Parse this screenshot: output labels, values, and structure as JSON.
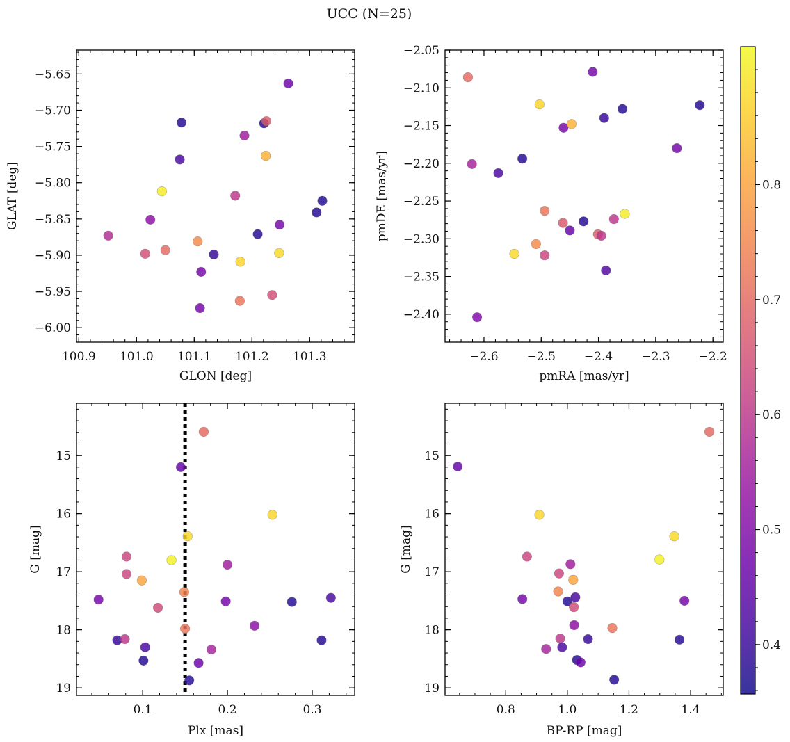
{
  "figure": {
    "title": "UCC (N=25)"
  },
  "colorbar": {
    "colormap": "plasma",
    "range": [
      0.357,
      0.92
    ],
    "ticks": [
      0.4,
      0.5,
      0.6,
      0.7,
      0.8
    ],
    "tick_labels": [
      "0.4",
      "0.5",
      "0.6",
      "0.7",
      "0.8"
    ],
    "minor_step": 0.02
  },
  "chart_data": [
    {
      "type": "scatter",
      "xlabel": "GLON [deg]",
      "ylabel": "GLAT [deg]",
      "xlim": [
        100.896,
        101.378
      ],
      "ylim": [
        -6.02,
        -5.617
      ],
      "y_inverted": false,
      "xticks": [
        100.9,
        101.0,
        101.1,
        101.2,
        101.3
      ],
      "xtick_labels": [
        "100.9",
        "101.0",
        "101.1",
        "101.2",
        "101.3"
      ],
      "yticks": [
        -5.65,
        -5.7,
        -5.75,
        -5.8,
        -5.85,
        -5.9,
        -5.95,
        -6.0
      ],
      "ytick_labels": [
        "−5.65",
        "−5.70",
        "−5.75",
        "−5.80",
        "−5.85",
        "−5.90",
        "−5.95",
        "−6.00"
      ],
      "xminor": 0.02,
      "yminor": 0.01,
      "points": [
        [
          100.951,
          -5.873,
          0.58
        ],
        [
          101.015,
          -5.898,
          0.65
        ],
        [
          101.05,
          -5.893,
          0.7
        ],
        [
          101.044,
          -5.812,
          0.9
        ],
        [
          101.024,
          -5.851,
          0.52
        ],
        [
          101.078,
          -5.717,
          0.38
        ],
        [
          101.075,
          -5.768,
          0.42
        ],
        [
          101.106,
          -5.881,
          0.76
        ],
        [
          101.134,
          -5.899,
          0.4
        ],
        [
          101.112,
          -5.923,
          0.48
        ],
        [
          101.11,
          -5.973,
          0.48
        ],
        [
          101.171,
          -5.818,
          0.6
        ],
        [
          101.18,
          -5.909,
          0.87
        ],
        [
          101.187,
          -5.735,
          0.55
        ],
        [
          101.179,
          -5.963,
          0.72
        ],
        [
          101.21,
          -5.871,
          0.38
        ],
        [
          101.221,
          -5.718,
          0.38
        ],
        [
          101.225,
          -5.715,
          0.68
        ],
        [
          101.224,
          -5.763,
          0.82
        ],
        [
          101.235,
          -5.955,
          0.65
        ],
        [
          101.248,
          -5.858,
          0.48
        ],
        [
          101.247,
          -5.897,
          0.88
        ],
        [
          101.263,
          -5.663,
          0.47
        ],
        [
          101.312,
          -5.841,
          0.38
        ],
        [
          101.322,
          -5.825,
          0.38
        ]
      ]
    },
    {
      "type": "scatter",
      "xlabel": "pmRA [mas/yr]",
      "ylabel": "pmDE [mas/yr]",
      "xlim": [
        -2.668,
        -2.182
      ],
      "ylim": [
        -2.437,
        -2.05
      ],
      "y_inverted": false,
      "xticks": [
        -2.6,
        -2.5,
        -2.4,
        -2.3,
        -2.2
      ],
      "xtick_labels": [
        "−2.6",
        "−2.5",
        "−2.4",
        "−2.3",
        "−2.2"
      ],
      "yticks": [
        -2.05,
        -2.1,
        -2.15,
        -2.2,
        -2.25,
        -2.3,
        -2.35,
        -2.4
      ],
      "ytick_labels": [
        "−2.05",
        "−2.10",
        "−2.15",
        "−2.20",
        "−2.25",
        "−2.30",
        "−2.35",
        "−2.40"
      ],
      "xminor": 0.02,
      "yminor": 0.01,
      "points": [
        [
          -2.628,
          -2.086,
          0.7
        ],
        [
          -2.621,
          -2.201,
          0.56
        ],
        [
          -2.612,
          -2.404,
          0.5
        ],
        [
          -2.575,
          -2.213,
          0.42
        ],
        [
          -2.533,
          -2.194,
          0.38
        ],
        [
          -2.503,
          -2.122,
          0.87
        ],
        [
          -2.547,
          -2.32,
          0.88
        ],
        [
          -2.509,
          -2.307,
          0.76
        ],
        [
          -2.494,
          -2.263,
          0.72
        ],
        [
          -2.494,
          -2.322,
          0.63
        ],
        [
          -2.461,
          -2.153,
          0.48
        ],
        [
          -2.447,
          -2.148,
          0.82
        ],
        [
          -2.462,
          -2.279,
          0.67
        ],
        [
          -2.45,
          -2.289,
          0.46
        ],
        [
          -2.426,
          -2.277,
          0.38
        ],
        [
          -2.41,
          -2.079,
          0.48
        ],
        [
          -2.401,
          -2.294,
          0.68
        ],
        [
          -2.395,
          -2.296,
          0.6
        ],
        [
          -2.39,
          -2.14,
          0.4
        ],
        [
          -2.387,
          -2.342,
          0.43
        ],
        [
          -2.373,
          -2.274,
          0.6
        ],
        [
          -2.354,
          -2.267,
          0.9
        ],
        [
          -2.358,
          -2.128,
          0.38
        ],
        [
          -2.263,
          -2.18,
          0.48
        ],
        [
          -2.223,
          -2.123,
          0.38
        ]
      ]
    },
    {
      "type": "scatter",
      "xlabel": "Plx [mas]",
      "ylabel": "G [mag]",
      "xlim": [
        0.022,
        0.35
      ],
      "ylim": [
        14.1,
        19.13
      ],
      "y_inverted": true,
      "xticks": [
        0.1,
        0.2,
        0.3
      ],
      "xtick_labels": [
        "0.1",
        "0.2",
        "0.3"
      ],
      "yticks": [
        15,
        16,
        17,
        18,
        19
      ],
      "ytick_labels": [
        "15",
        "16",
        "17",
        "18",
        "19"
      ],
      "xminor": 0.02,
      "yminor": 0.2,
      "vline": {
        "x": 0.15,
        "style": "dotted",
        "color": "#000000"
      },
      "points": [
        [
          0.048,
          17.48,
          0.48
        ],
        [
          0.07,
          18.18,
          0.4
        ],
        [
          0.079,
          18.16,
          0.6
        ],
        [
          0.081,
          16.74,
          0.63
        ],
        [
          0.081,
          17.04,
          0.63
        ],
        [
          0.099,
          17.15,
          0.8
        ],
        [
          0.103,
          18.3,
          0.42
        ],
        [
          0.101,
          18.53,
          0.38
        ],
        [
          0.118,
          17.62,
          0.64
        ],
        [
          0.134,
          16.8,
          0.91
        ],
        [
          0.145,
          15.2,
          0.46
        ],
        [
          0.149,
          17.35,
          0.75
        ],
        [
          0.15,
          17.98,
          0.72
        ],
        [
          0.153,
          16.39,
          0.88
        ],
        [
          0.155,
          18.87,
          0.38
        ],
        [
          0.166,
          18.57,
          0.47
        ],
        [
          0.172,
          14.59,
          0.7
        ],
        [
          0.181,
          18.34,
          0.56
        ],
        [
          0.198,
          17.51,
          0.48
        ],
        [
          0.2,
          16.88,
          0.55
        ],
        [
          0.232,
          17.93,
          0.52
        ],
        [
          0.253,
          16.02,
          0.87
        ],
        [
          0.276,
          17.52,
          0.38
        ],
        [
          0.311,
          18.18,
          0.38
        ],
        [
          0.322,
          17.45,
          0.42
        ]
      ]
    },
    {
      "type": "scatter",
      "xlabel": "BP-RP [mag]",
      "ylabel": "G [mag]",
      "xlim": [
        0.603,
        1.506
      ],
      "ylim": [
        14.1,
        19.13
      ],
      "y_inverted": true,
      "xticks": [
        0.8,
        1.0,
        1.2,
        1.4
      ],
      "xtick_labels": [
        "0.8",
        "1.0",
        "1.2",
        "1.4"
      ],
      "yticks": [
        15,
        16,
        17,
        18,
        19
      ],
      "ytick_labels": [
        "15",
        "16",
        "17",
        "18",
        "19"
      ],
      "xminor": 0.05,
      "yminor": 0.2,
      "points": [
        [
          0.644,
          15.19,
          0.46
        ],
        [
          1.461,
          14.59,
          0.7
        ],
        [
          0.909,
          16.02,
          0.87
        ],
        [
          1.347,
          16.39,
          0.88
        ],
        [
          1.299,
          16.79,
          0.91
        ],
        [
          0.869,
          16.74,
          0.63
        ],
        [
          1.01,
          16.87,
          0.55
        ],
        [
          0.973,
          17.03,
          0.63
        ],
        [
          1.019,
          17.14,
          0.8
        ],
        [
          0.97,
          17.34,
          0.75
        ],
        [
          0.854,
          17.47,
          0.48
        ],
        [
          1.0,
          17.51,
          0.38
        ],
        [
          1.026,
          17.44,
          0.42
        ],
        [
          1.021,
          17.61,
          0.64
        ],
        [
          1.38,
          17.5,
          0.48
        ],
        [
          1.022,
          17.92,
          0.52
        ],
        [
          1.146,
          17.97,
          0.72
        ],
        [
          0.977,
          18.15,
          0.6
        ],
        [
          1.067,
          18.16,
          0.4
        ],
        [
          1.364,
          18.17,
          0.38
        ],
        [
          0.931,
          18.33,
          0.56
        ],
        [
          0.983,
          18.3,
          0.42
        ],
        [
          1.031,
          18.52,
          0.38
        ],
        [
          1.043,
          18.56,
          0.47
        ],
        [
          1.152,
          18.86,
          0.38
        ]
      ]
    }
  ]
}
